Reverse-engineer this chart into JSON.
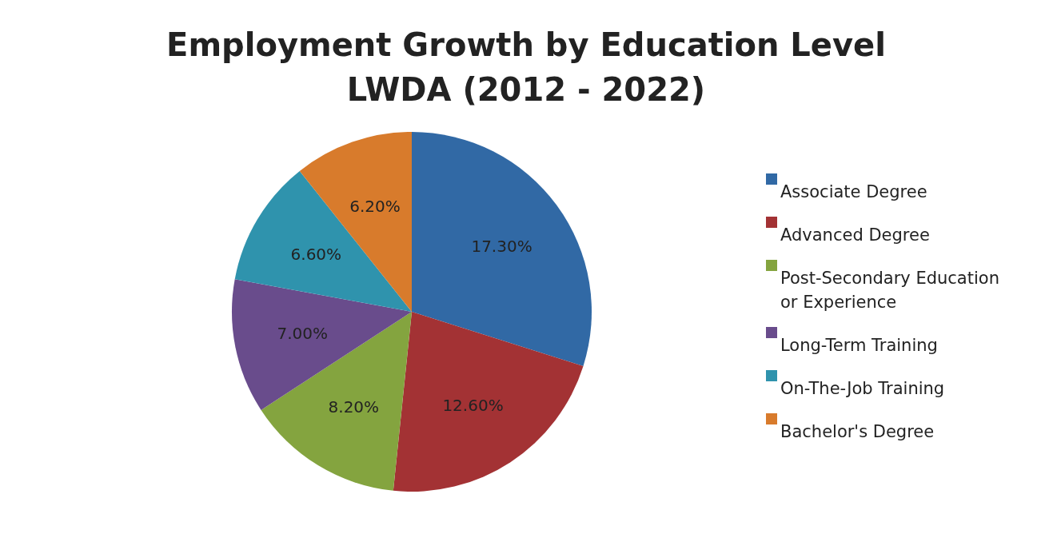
{
  "chart_data": {
    "type": "pie",
    "title": "Employment Growth by Education Level",
    "subtitle": "LWDA (2012 - 2022)",
    "categories": [
      "Associate Degree",
      "Advanced Degree",
      "Post-Secondary Education or Experience",
      "Long-Term Training",
      "On-The-Job Training",
      "Bachelor's Degree"
    ],
    "values": [
      17.3,
      12.6,
      8.2,
      7.0,
      6.6,
      6.2
    ],
    "value_labels": [
      "17.30%",
      "12.60%",
      "8.20%",
      "7.00%",
      "6.60%",
      "6.20%"
    ],
    "colors": [
      "#3169a5",
      "#a33234",
      "#84a43f",
      "#694c8c",
      "#2f93ad",
      "#d87b2c"
    ],
    "legend": "right"
  }
}
